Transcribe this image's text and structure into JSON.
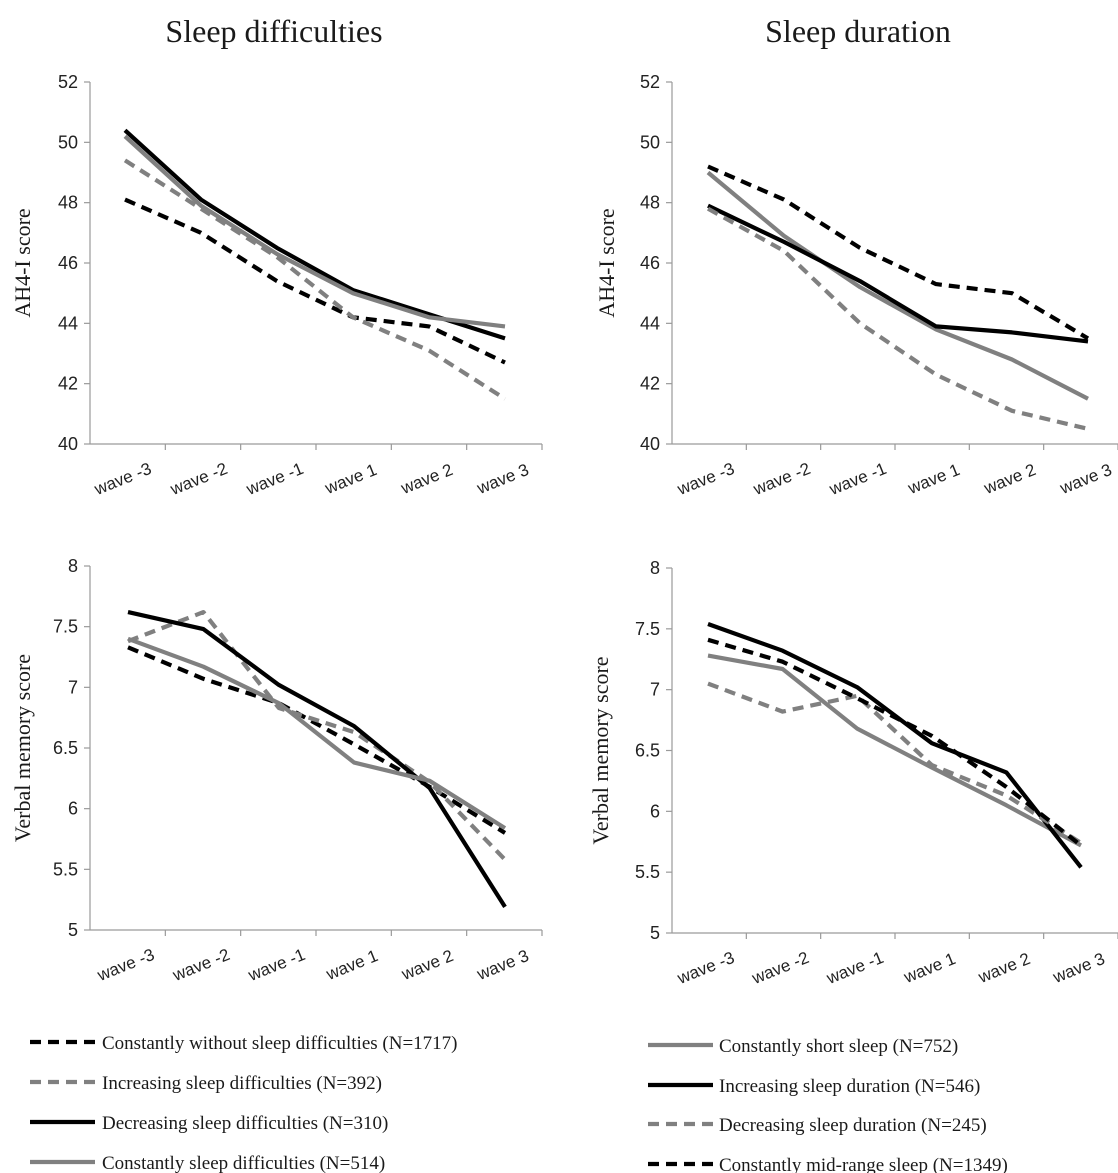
{
  "titles": {
    "left": "Sleep difficulties",
    "right": "Sleep duration"
  },
  "legends": {
    "left": [
      {
        "label": "Constantly without sleep difficulties (N=1717)",
        "color": "#000000",
        "dash": true
      },
      {
        "label": "Increasing sleep difficulties (N=392)",
        "color": "#808080",
        "dash": true
      },
      {
        "label": "Decreasing sleep difficulties (N=310)",
        "color": "#000000",
        "dash": false
      },
      {
        "label": "Constantly sleep difficulties (N=514)",
        "color": "#808080",
        "dash": false
      }
    ],
    "right": [
      {
        "label": "Constantly short sleep (N=752)",
        "color": "#808080",
        "dash": false
      },
      {
        "label": "Increasing sleep duration (N=546)",
        "color": "#000000",
        "dash": false
      },
      {
        "label": "Decreasing sleep duration (N=245)",
        "color": "#808080",
        "dash": true
      },
      {
        "label": "Constantly mid-range sleep (N=1349)",
        "color": "#000000",
        "dash": true
      }
    ]
  },
  "chart_data": [
    {
      "type": "line",
      "title": "",
      "ylabel": "AH4-I score",
      "xlabel": "",
      "categories": [
        "wave -3",
        "wave -2",
        "wave -1",
        "wave 1",
        "wave 2",
        "wave 3"
      ],
      "ylim": [
        40,
        52
      ],
      "yticks": [
        "40",
        "42",
        "44",
        "46",
        "48",
        "50",
        "52"
      ],
      "grid": false,
      "series": [
        {
          "name": "Constantly without sleep difficulties (N=1717)",
          "color": "#000000",
          "dash": true,
          "values": [
            48.1,
            47.0,
            45.4,
            44.2,
            43.9,
            42.7
          ]
        },
        {
          "name": "Increasing sleep difficulties (N=392)",
          "color": "#808080",
          "dash": true,
          "values": [
            49.4,
            47.8,
            46.2,
            44.2,
            43.1,
            41.5
          ]
        },
        {
          "name": "Decreasing sleep difficulties (N=310)",
          "color": "#000000",
          "dash": false,
          "values": [
            50.4,
            48.1,
            46.5,
            45.1,
            44.3,
            43.5
          ]
        },
        {
          "name": "Constantly sleep difficulties (N=514)",
          "color": "#808080",
          "dash": false,
          "values": [
            50.2,
            47.9,
            46.3,
            45.0,
            44.2,
            43.9
          ]
        }
      ]
    },
    {
      "type": "line",
      "title": "",
      "ylabel": "AH4-I score",
      "xlabel": "",
      "categories": [
        "wave -3",
        "wave -2",
        "wave -1",
        "wave 1",
        "wave 2",
        "wave 3"
      ],
      "ylim": [
        40,
        52
      ],
      "yticks": [
        "40",
        "42",
        "44",
        "46",
        "48",
        "50",
        "52"
      ],
      "grid": false,
      "series": [
        {
          "name": "Constantly short sleep (N=752)",
          "color": "#808080",
          "dash": false,
          "values": [
            49.0,
            46.9,
            45.2,
            43.8,
            42.8,
            41.5
          ]
        },
        {
          "name": "Increasing sleep duration (N=546)",
          "color": "#000000",
          "dash": false,
          "values": [
            47.9,
            46.7,
            45.4,
            43.9,
            43.7,
            43.4
          ]
        },
        {
          "name": "Decreasing sleep duration (N=245)",
          "color": "#808080",
          "dash": true,
          "values": [
            47.8,
            46.4,
            44.0,
            42.3,
            41.1,
            40.5
          ]
        },
        {
          "name": "Constantly mid-range sleep (N=1349)",
          "color": "#000000",
          "dash": true,
          "values": [
            49.2,
            48.1,
            46.5,
            45.3,
            45.0,
            43.5
          ]
        }
      ]
    },
    {
      "type": "line",
      "title": "",
      "ylabel": "Verbal memory  score",
      "xlabel": "",
      "categories": [
        "wave -3",
        "wave -2",
        "wave -1",
        "wave 1",
        "wave 2",
        "wave 3"
      ],
      "ylim": [
        5,
        8
      ],
      "yticks": [
        "5",
        "5.5",
        "6",
        "6.5",
        "7",
        "7.5",
        "8"
      ],
      "grid": false,
      "series": [
        {
          "name": "Constantly without sleep difficulties (N=1717)",
          "color": "#000000",
          "dash": true,
          "values": [
            7.33,
            7.07,
            6.87,
            6.53,
            6.18,
            5.8
          ]
        },
        {
          "name": "Increasing sleep difficulties (N=392)",
          "color": "#808080",
          "dash": true,
          "values": [
            7.38,
            7.62,
            6.83,
            6.63,
            6.22,
            5.58
          ]
        },
        {
          "name": "Decreasing sleep difficulties (N=310)",
          "color": "#000000",
          "dash": false,
          "values": [
            7.62,
            7.48,
            7.02,
            6.68,
            6.17,
            5.19
          ]
        },
        {
          "name": "Constantly sleep difficulties (N=514)",
          "color": "#808080",
          "dash": false,
          "values": [
            7.4,
            7.17,
            6.87,
            6.38,
            6.23,
            5.84
          ]
        }
      ]
    },
    {
      "type": "line",
      "title": "",
      "ylabel": "Verbal memory  score",
      "xlabel": "",
      "categories": [
        "wave -3",
        "wave -2",
        "wave -1",
        "wave 1",
        "wave 2",
        "wave 3"
      ],
      "ylim": [
        5,
        8
      ],
      "yticks": [
        "5",
        "5.5",
        "6",
        "6.5",
        "7",
        "7.5",
        "8"
      ],
      "grid": false,
      "series": [
        {
          "name": "Constantly short sleep (N=752)",
          "color": "#808080",
          "dash": false,
          "values": [
            7.28,
            7.17,
            6.68,
            6.36,
            6.05,
            5.72
          ]
        },
        {
          "name": "Increasing sleep duration (N=546)",
          "color": "#000000",
          "dash": false,
          "values": [
            7.54,
            7.32,
            7.02,
            6.56,
            6.32,
            5.54
          ]
        },
        {
          "name": "Decreasing sleep duration (N=245)",
          "color": "#808080",
          "dash": true,
          "values": [
            7.05,
            6.82,
            6.95,
            6.38,
            6.13,
            5.74
          ]
        },
        {
          "name": "Constantly mid-range sleep (N=1349)",
          "color": "#000000",
          "dash": true,
          "values": [
            7.41,
            7.23,
            6.93,
            6.62,
            6.2,
            5.72
          ]
        }
      ]
    }
  ]
}
